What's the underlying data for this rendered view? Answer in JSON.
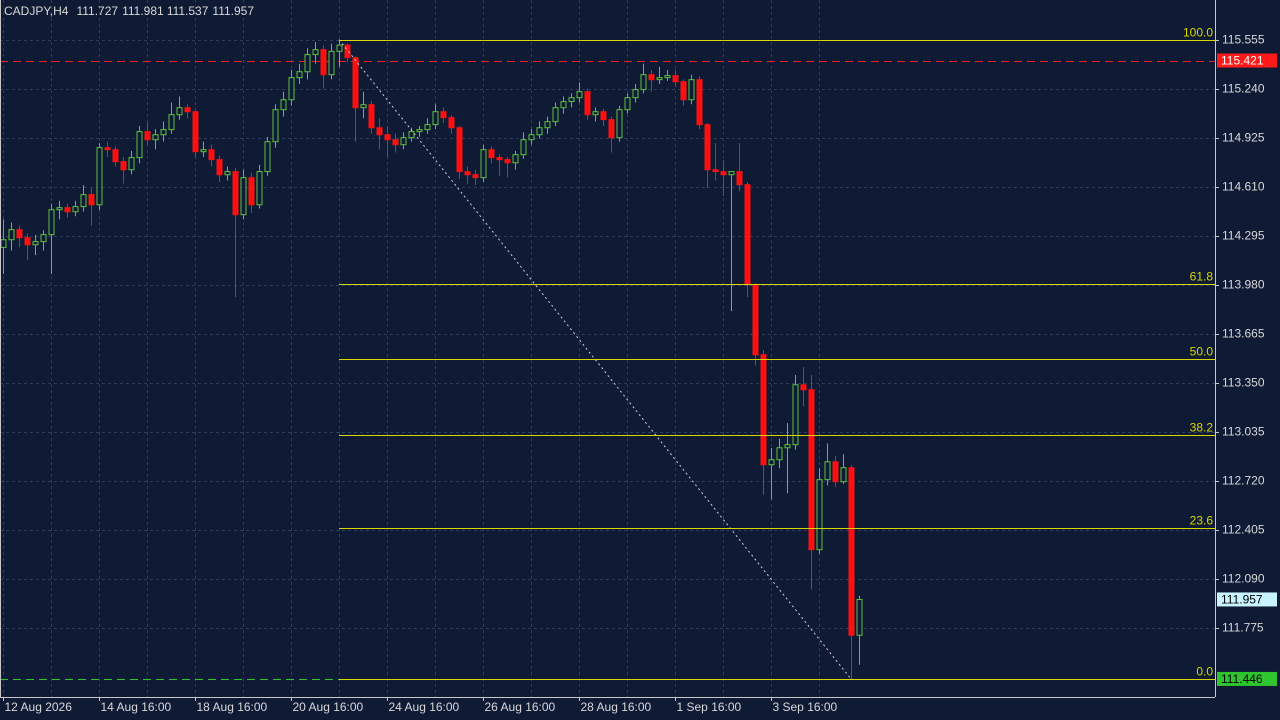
{
  "chart_data": {
    "type": "candlestick",
    "title": "CADJPY,H4",
    "up_color": "#5ec23a",
    "down_color": "#ff1010",
    "grid": true,
    "ylim": [
      111.33,
      115.81
    ],
    "yticks": [
      115.555,
      {
        "value": 115.24,
        "label": "115.240"
      },
      114.925,
      {
        "value": 114.61,
        "label": "114.610"
      },
      114.295,
      {
        "value": 113.98,
        "label": "113.980"
      },
      113.665,
      {
        "value": 113.35,
        "label": "113.350"
      },
      113.035,
      {
        "value": 112.72,
        "label": "112.720"
      },
      112.405,
      {
        "value": 112.09,
        "label": "112.090"
      },
      111.775
    ],
    "categories": [
      "12 Aug 2026",
      null,
      null,
      null,
      null,
      null,
      null,
      null,
      null,
      null,
      null,
      null,
      "14 Aug 16:00",
      null,
      null,
      null,
      null,
      null,
      null,
      null,
      null,
      null,
      null,
      null,
      "18 Aug 16:00",
      null,
      null,
      null,
      null,
      null,
      null,
      null,
      null,
      null,
      null,
      null,
      "20 Aug 16:00",
      null,
      null,
      null,
      null,
      null,
      null,
      null,
      null,
      null,
      null,
      null,
      "24 Aug 16:00",
      null,
      null,
      null,
      null,
      null,
      null,
      null,
      null,
      null,
      null,
      null,
      "26 Aug 16:00",
      null,
      null,
      null,
      null,
      null,
      null,
      null,
      null,
      null,
      null,
      null,
      "28 Aug 16:00",
      null,
      null,
      null,
      null,
      null,
      null,
      null,
      null,
      null,
      null,
      null,
      "1 Sep 16:00",
      null,
      null,
      null,
      null,
      null,
      null,
      null,
      null,
      null,
      null,
      null,
      "3 Sep 16:00",
      null,
      null,
      null,
      null,
      null,
      null,
      null,
      null,
      null,
      null,
      null
    ],
    "candles": [
      [
        114.22,
        114.4,
        114.05,
        114.269
      ],
      [
        114.269,
        114.38,
        114.2,
        114.334
      ],
      [
        114.334,
        114.36,
        114.22,
        114.282
      ],
      [
        114.282,
        114.31,
        114.14,
        114.237
      ],
      [
        114.237,
        114.3,
        114.17,
        114.257
      ],
      [
        114.257,
        114.33,
        114.2,
        114.302
      ],
      [
        114.302,
        114.5,
        114.05,
        114.462
      ],
      [
        114.462,
        114.52,
        114.4,
        114.475
      ],
      [
        114.475,
        114.5,
        114.41,
        114.449
      ],
      [
        114.449,
        114.52,
        114.42,
        114.482
      ],
      [
        114.482,
        114.62,
        114.45,
        114.559
      ],
      [
        114.559,
        114.6,
        114.36,
        114.494
      ],
      [
        114.494,
        114.89,
        114.46,
        114.861
      ],
      [
        114.861,
        114.9,
        114.8,
        114.848
      ],
      [
        114.848,
        114.87,
        114.74,
        114.771
      ],
      [
        114.771,
        114.8,
        114.63,
        114.719
      ],
      [
        114.719,
        114.84,
        114.69,
        114.797
      ],
      [
        114.797,
        115.0,
        114.76,
        114.964
      ],
      [
        114.964,
        115.02,
        114.88,
        114.912
      ],
      [
        114.912,
        114.98,
        114.85,
        114.944
      ],
      [
        114.944,
        115.03,
        114.9,
        114.977
      ],
      [
        114.977,
        115.15,
        114.95,
        115.073
      ],
      [
        115.073,
        115.19,
        115.04,
        115.118
      ],
      [
        115.118,
        115.14,
        115.05,
        115.092
      ],
      [
        115.092,
        115.1,
        114.8,
        114.835
      ],
      [
        114.835,
        114.9,
        114.8,
        114.848
      ],
      [
        114.848,
        114.88,
        114.74,
        114.784
      ],
      [
        114.784,
        114.81,
        114.64,
        114.687
      ],
      [
        114.687,
        114.74,
        114.65,
        114.707
      ],
      [
        114.707,
        114.73,
        113.9,
        114.43
      ],
      [
        114.43,
        114.72,
        114.4,
        114.668
      ],
      [
        114.668,
        114.7,
        114.44,
        114.494
      ],
      [
        114.494,
        114.75,
        114.47,
        114.707
      ],
      [
        114.707,
        114.93,
        114.68,
        114.899
      ],
      [
        114.899,
        115.14,
        114.86,
        115.105
      ],
      [
        115.105,
        115.22,
        115.06,
        115.169
      ],
      [
        115.169,
        115.36,
        115.13,
        115.311
      ],
      [
        115.311,
        115.4,
        115.27,
        115.349
      ],
      [
        115.349,
        115.5,
        115.3,
        115.459
      ],
      [
        115.459,
        115.54,
        115.4,
        115.491
      ],
      [
        115.491,
        115.52,
        115.24,
        115.33
      ],
      [
        115.33,
        115.53,
        115.3,
        115.48
      ],
      [
        115.48,
        115.555,
        115.38,
        115.52
      ],
      [
        115.52,
        115.53,
        115.41,
        115.439
      ],
      [
        115.439,
        115.45,
        114.9,
        115.118
      ],
      [
        115.118,
        115.22,
        115.05,
        115.137
      ],
      [
        115.137,
        115.16,
        114.95,
        114.989
      ],
      [
        114.989,
        115.05,
        114.85,
        114.944
      ],
      [
        114.944,
        115.0,
        114.8,
        114.912
      ],
      [
        114.912,
        114.95,
        114.83,
        114.88
      ],
      [
        114.88,
        114.96,
        114.85,
        114.925
      ],
      [
        114.925,
        114.99,
        114.9,
        114.964
      ],
      [
        114.964,
        115.0,
        114.93,
        114.977
      ],
      [
        114.977,
        115.05,
        114.95,
        115.009
      ],
      [
        115.009,
        115.14,
        114.98,
        115.092
      ],
      [
        115.092,
        115.12,
        115.02,
        115.054
      ],
      [
        115.054,
        115.07,
        114.95,
        114.989
      ],
      [
        114.989,
        115.0,
        114.66,
        114.707
      ],
      [
        114.707,
        114.74,
        114.63,
        114.687
      ],
      [
        114.687,
        114.72,
        114.62,
        114.668
      ],
      [
        114.668,
        114.88,
        114.64,
        114.848
      ],
      [
        114.848,
        114.87,
        114.76,
        114.797
      ],
      [
        114.797,
        114.82,
        114.68,
        114.784
      ],
      [
        114.784,
        114.8,
        114.67,
        114.764
      ],
      [
        114.764,
        114.84,
        114.72,
        114.816
      ],
      [
        114.816,
        114.96,
        114.79,
        114.912
      ],
      [
        114.912,
        114.98,
        114.88,
        114.944
      ],
      [
        114.944,
        115.03,
        114.92,
        114.989
      ],
      [
        114.989,
        115.06,
        114.95,
        115.028
      ],
      [
        115.028,
        115.15,
        115.0,
        115.118
      ],
      [
        115.118,
        115.19,
        115.08,
        115.157
      ],
      [
        115.157,
        115.21,
        115.12,
        115.182
      ],
      [
        115.182,
        115.28,
        115.15,
        115.221
      ],
      [
        115.221,
        115.24,
        115.04,
        115.073
      ],
      [
        115.073,
        115.12,
        115.03,
        115.092
      ],
      [
        115.092,
        115.11,
        115.0,
        115.041
      ],
      [
        115.041,
        115.06,
        114.83,
        114.925
      ],
      [
        114.925,
        115.13,
        114.9,
        115.105
      ],
      [
        115.105,
        115.21,
        115.08,
        115.182
      ],
      [
        115.182,
        115.27,
        115.15,
        115.234
      ],
      [
        115.234,
        115.4,
        115.21,
        115.33
      ],
      [
        115.33,
        115.36,
        115.22,
        115.298
      ],
      [
        115.298,
        115.38,
        115.27,
        115.311
      ],
      [
        115.311,
        115.36,
        115.29,
        115.324
      ],
      [
        115.324,
        115.36,
        115.25,
        115.285
      ],
      [
        115.285,
        115.3,
        115.13,
        115.169
      ],
      [
        115.169,
        115.33,
        115.14,
        115.298
      ],
      [
        115.298,
        115.32,
        114.98,
        115.009
      ],
      [
        115.009,
        115.02,
        114.6,
        114.719
      ],
      [
        114.719,
        114.89,
        114.65,
        114.707
      ],
      [
        114.707,
        114.78,
        114.55,
        114.687
      ],
      [
        114.687,
        114.7,
        113.81,
        114.707
      ],
      [
        114.707,
        114.89,
        114.58,
        114.623
      ],
      [
        114.623,
        114.64,
        113.9,
        113.98
      ],
      [
        113.98,
        113.99,
        113.46,
        113.53
      ],
      [
        113.53,
        113.56,
        112.63,
        112.823
      ],
      [
        112.823,
        112.93,
        112.6,
        112.855
      ],
      [
        112.855,
        112.99,
        112.8,
        112.932
      ],
      [
        112.932,
        113.09,
        112.64,
        112.952
      ],
      [
        112.952,
        113.4,
        112.92,
        113.337
      ],
      [
        113.337,
        113.45,
        113.2,
        113.305
      ],
      [
        113.305,
        113.4,
        112.02,
        112.277
      ],
      [
        112.277,
        112.8,
        112.25,
        112.727
      ],
      [
        112.727,
        112.96,
        112.69,
        112.842
      ],
      [
        112.842,
        112.88,
        112.68,
        112.714
      ],
      [
        112.714,
        112.89,
        112.7,
        112.804
      ],
      [
        112.804,
        112.82,
        111.446,
        111.727
      ],
      [
        111.727,
        111.981,
        111.537,
        111.957
      ]
    ],
    "fib_color": "#d8d800",
    "fib_levels": [
      {
        "label": "100.0",
        "price": 115.555
      },
      {
        "label": "61.8",
        "price": 113.985
      },
      {
        "label": "50.0",
        "price": 113.5005
      },
      {
        "label": "38.2",
        "price": 113.016
      },
      {
        "label": "23.6",
        "price": 112.416
      },
      {
        "label": "0.0",
        "price": 111.446
      }
    ],
    "lines": [
      {
        "price": 115.421,
        "color": "#ff1a1a"
      },
      {
        "price": 111.446,
        "color": "#2ec52e"
      }
    ]
  }
}
